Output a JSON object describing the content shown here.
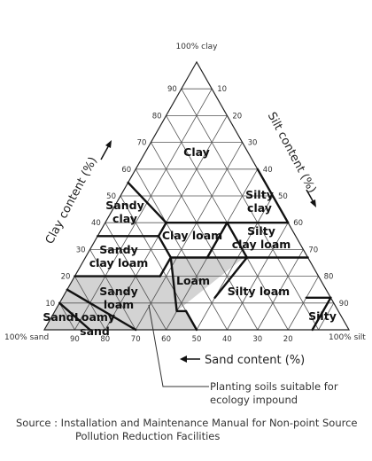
{
  "corners": {
    "top": "100% clay",
    "left": "100% sand",
    "right": "100% silt"
  },
  "axes": {
    "clay": {
      "label": "Clay content (%)",
      "ticks": [
        "90",
        "80",
        "70",
        "60",
        "50",
        "40",
        "30",
        "20",
        "10"
      ]
    },
    "silt": {
      "label": "Silt content (%)",
      "ticks": [
        "10",
        "20",
        "30",
        "40",
        "50",
        "60",
        "70",
        "80",
        "90"
      ]
    },
    "sand": {
      "label": "Sand content (%)",
      "ticks": [
        "90",
        "80",
        "70",
        "60",
        "50",
        "40",
        "30",
        "20"
      ]
    }
  },
  "regions": {
    "clay": "Clay",
    "sandy_clay": [
      "Sandy",
      "clay"
    ],
    "silty_clay": [
      "Silty",
      "clay"
    ],
    "sandy_clay_loam": [
      "Sandy",
      "clay loam"
    ],
    "clay_loam": "Clay loam",
    "silty_clay_loam": [
      "Silty",
      "clay loam"
    ],
    "loam": "Loam",
    "sandy_loam": [
      "Sandy",
      "loam"
    ],
    "silty_loam": "Silty loam",
    "sand": "Sand",
    "loamy_sand": [
      "Loamy",
      "sand"
    ],
    "silty": "Silty"
  },
  "highlight": {
    "label": [
      "Planting soils suitable for",
      "ecology impound"
    ],
    "fill": "#d3d3d3"
  },
  "colors": {
    "grid": "#555555",
    "boundary": "#111111",
    "text": "#222222"
  },
  "source": {
    "line1": "Source : Installation and Maintenance Manual for Non-point Source",
    "line2": "Pollution Reduction Facilities"
  }
}
